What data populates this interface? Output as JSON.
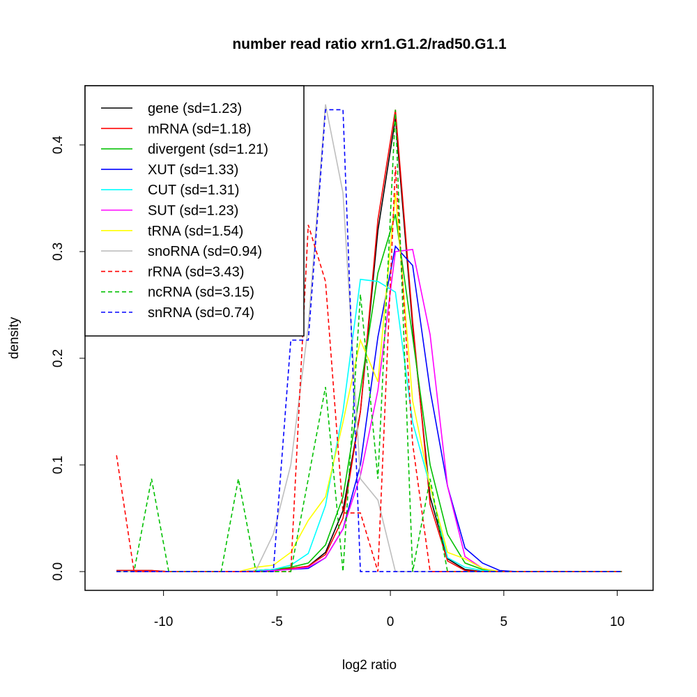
{
  "chart_data": {
    "type": "line",
    "title": "number read ratio xrn1.G1.2/rad50.G1.1",
    "xlabel": "log2 ratio",
    "ylabel": "density",
    "xlim": [
      -13.46,
      11.58
    ],
    "ylim": [
      -0.0176,
      0.4555
    ],
    "xticks": [
      -10,
      -5,
      0,
      5,
      10
    ],
    "xtick_labels": [
      "-10",
      "-5",
      "0",
      "5",
      "10"
    ],
    "yticks": [
      0.0,
      0.1,
      0.2,
      0.3,
      0.4
    ],
    "ytick_labels": [
      "0.0",
      "0.1",
      "0.2",
      "0.3",
      "0.4"
    ],
    "grid": false,
    "legend_position": "top-left",
    "x": [
      -12.07,
      -11.3,
      -10.53,
      -9.77,
      -9.0,
      -8.23,
      -7.46,
      -6.7,
      -5.93,
      -5.16,
      -4.39,
      -3.62,
      -2.86,
      -2.09,
      -1.32,
      -0.55,
      0.22,
      0.98,
      1.75,
      2.52,
      3.29,
      4.06,
      4.82,
      5.59,
      6.36,
      7.13,
      7.9,
      8.66,
      9.43,
      10.2
    ],
    "series": [
      {
        "name": "gene (sd=1.23)",
        "color": "#000000",
        "dashed": false,
        "values": [
          0.001,
          0.001,
          0.001,
          0,
          0,
          0,
          0,
          0,
          0.001,
          0.002,
          0.003,
          0.005,
          0.018,
          0.057,
          0.15,
          0.32,
          0.425,
          0.23,
          0.07,
          0.012,
          0.002,
          0,
          0,
          0,
          0,
          0,
          0,
          0,
          0,
          0
        ]
      },
      {
        "name": "mRNA (sd=1.18)",
        "color": "#ff0000",
        "dashed": false,
        "values": [
          0.001,
          0.001,
          0.001,
          0,
          0,
          0,
          0,
          0,
          0.001,
          0.002,
          0.003,
          0.005,
          0.016,
          0.05,
          0.15,
          0.33,
          0.433,
          0.235,
          0.063,
          0.01,
          0.001,
          0,
          0,
          0,
          0,
          0,
          0,
          0,
          0,
          0
        ]
      },
      {
        "name": "divergent (sd=1.21)",
        "color": "#00c000",
        "dashed": false,
        "values": [
          0,
          0,
          0,
          0,
          0,
          0,
          0,
          0,
          0.001,
          0.002,
          0.004,
          0.008,
          0.025,
          0.07,
          0.17,
          0.28,
          0.335,
          0.22,
          0.1,
          0.035,
          0.008,
          0.002,
          0,
          0,
          0,
          0,
          0,
          0,
          0,
          0
        ]
      },
      {
        "name": "XUT (sd=1.33)",
        "color": "#0000ff",
        "dashed": false,
        "values": [
          0,
          0,
          0,
          0,
          0,
          0,
          0,
          0,
          0,
          0.001,
          0.002,
          0.003,
          0.013,
          0.04,
          0.1,
          0.22,
          0.305,
          0.287,
          0.17,
          0.08,
          0.022,
          0.008,
          0.001,
          0,
          0,
          0,
          0,
          0,
          0,
          0
        ]
      },
      {
        "name": "CUT (sd=1.31)",
        "color": "#00ffff",
        "dashed": false,
        "values": [
          0,
          0,
          0,
          0,
          0,
          0,
          0,
          0,
          0.001,
          0.002,
          0.006,
          0.017,
          0.062,
          0.15,
          0.274,
          0.272,
          0.262,
          0.14,
          0.08,
          0.013,
          0.004,
          0.001,
          0,
          0,
          0,
          0,
          0,
          0,
          0,
          0
        ]
      },
      {
        "name": "SUT (sd=1.23)",
        "color": "#ff00ff",
        "dashed": false,
        "values": [
          0,
          0,
          0,
          0,
          0,
          0,
          0,
          0,
          0,
          0.001,
          0.002,
          0.004,
          0.013,
          0.04,
          0.09,
          0.17,
          0.3,
          0.302,
          0.222,
          0.08,
          0.014,
          0.003,
          0,
          0,
          0,
          0,
          0,
          0,
          0,
          0
        ]
      },
      {
        "name": "tRNA (sd=1.54)",
        "color": "#ffff00",
        "dashed": false,
        "values": [
          0,
          0,
          0,
          0,
          0,
          0,
          0,
          0,
          0.004,
          0.006,
          0.018,
          0.048,
          0.07,
          0.14,
          0.217,
          0.178,
          0.355,
          0.16,
          0.08,
          0.018,
          0.012,
          0.003,
          0,
          0,
          0,
          0,
          0,
          0,
          0,
          0
        ]
      },
      {
        "name": "snoRNA (sd=0.94)",
        "color": "#bebebe",
        "dashed": false,
        "values": [
          0,
          0,
          0,
          0,
          0,
          0,
          0,
          0,
          0.001,
          0.035,
          0.1,
          0.23,
          0.438,
          0.355,
          0.087,
          0.067,
          0,
          0,
          0,
          0,
          0,
          0,
          0,
          0,
          0,
          0,
          0,
          0,
          0,
          0
        ]
      },
      {
        "name": "rRNA (sd=3.43)",
        "color": "#ff0000",
        "dashed": true,
        "values": [
          0.109,
          0,
          0,
          0,
          0,
          0,
          0,
          0,
          0,
          0,
          0,
          0.325,
          0.272,
          0.055,
          0.055,
          0,
          0.38,
          0.12,
          0,
          0,
          0,
          0,
          0,
          0,
          0,
          0,
          0,
          0,
          0,
          0
        ]
      },
      {
        "name": "ncRNA (sd=3.15)",
        "color": "#00c000",
        "dashed": true,
        "values": [
          0,
          0,
          0.087,
          0,
          0,
          0,
          0,
          0.087,
          0,
          0,
          0,
          0.087,
          0.173,
          0,
          0.26,
          0.087,
          0.433,
          0,
          0.087,
          0,
          0,
          0,
          0,
          0,
          0,
          0,
          0,
          0,
          0,
          0
        ]
      },
      {
        "name": "snRNA (sd=0.74)",
        "color": "#0000ff",
        "dashed": true,
        "values": [
          0,
          0,
          0,
          0,
          0,
          0,
          0,
          0,
          0,
          0,
          0.217,
          0.217,
          0.433,
          0.433,
          0,
          0,
          0,
          0,
          0,
          0,
          0,
          0,
          0,
          0,
          0,
          0,
          0,
          0,
          0,
          0
        ]
      }
    ]
  }
}
